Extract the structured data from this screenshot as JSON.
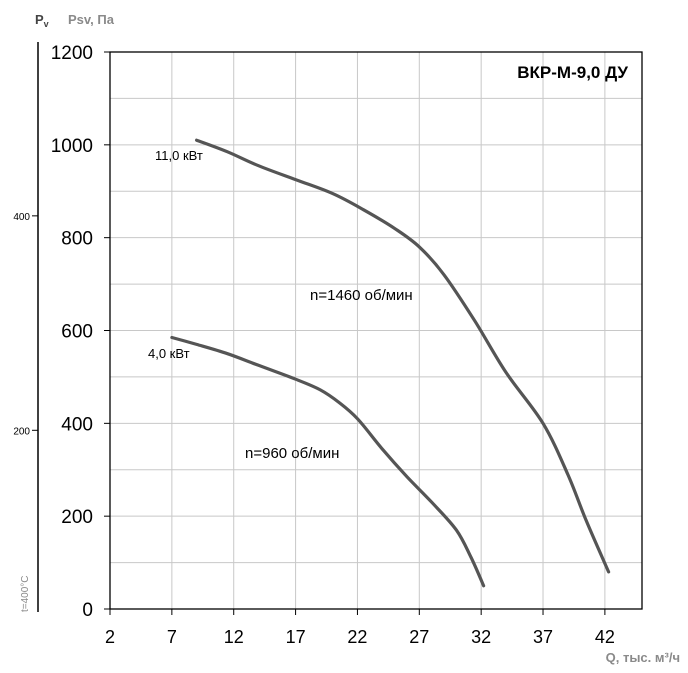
{
  "chart_data": {
    "type": "line",
    "title": "ВКР-М-9,0 ДУ",
    "xlabel": "Q, тыс. м³/ч",
    "ylabel_pv": "P",
    "ylabel_pv_sub": "v",
    "ylabel_psv": "Psv, Па",
    "temperature_label": "t=400°C",
    "x_ticks": [
      2,
      7,
      12,
      17,
      22,
      27,
      32,
      37,
      42
    ],
    "y_ticks": [
      0,
      200,
      400,
      600,
      800,
      1000,
      1200
    ],
    "pv_ticks": [
      200,
      400
    ],
    "pv_tick_values_psv": [
      385,
      847
    ],
    "xlim": [
      2,
      45
    ],
    "ylim": [
      0,
      1200
    ],
    "grid": true,
    "colors": {
      "curve": "#555555",
      "text": "#000000",
      "secondary_text": "#8a8a8a"
    },
    "series": [
      {
        "name": "n=1460 об/мин",
        "power_label": "11,0 кВт",
        "x": [
          9.0,
          11.5,
          14,
          17,
          20,
          22.5,
          25,
          27,
          29,
          31.5,
          34,
          37,
          39,
          40.5,
          42.3
        ],
        "y": [
          1010,
          985,
          955,
          925,
          895,
          860,
          820,
          780,
          720,
          620,
          510,
          400,
          290,
          190,
          80
        ]
      },
      {
        "name": "n=960 об/мин",
        "power_label": "4,0 кВт",
        "x": [
          7.0,
          9,
          11.5,
          14,
          17,
          19,
          20.5,
          22,
          24,
          26,
          28,
          30,
          31.2,
          32.2
        ],
        "y": [
          585,
          570,
          550,
          525,
          495,
          472,
          445,
          410,
          345,
          285,
          230,
          170,
          110,
          50
        ]
      }
    ]
  }
}
